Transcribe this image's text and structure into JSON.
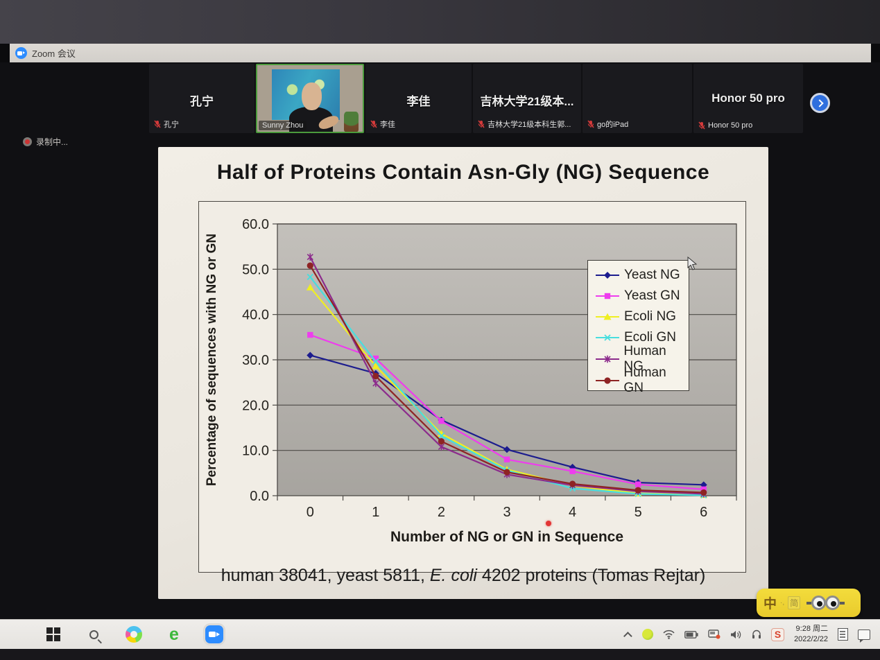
{
  "window": {
    "title": "Zoom 会议"
  },
  "recording": {
    "label": "录制中..."
  },
  "meeting": {
    "participants": [
      {
        "display_name": "孔宁",
        "label": "孔宁"
      },
      {
        "display_name": "",
        "label": "Sunny Zhou"
      },
      {
        "display_name": "李佳",
        "label": "李佳"
      },
      {
        "display_name": "吉林大学21级本...",
        "label": "吉林大学21级本科生郭..."
      },
      {
        "display_name": "",
        "label": "go的iPad"
      },
      {
        "display_name": "Honor 50 pro",
        "label": "Honor 50 pro"
      }
    ]
  },
  "slide": {
    "title": "Half of Proteins Contain Asn-Gly (NG) Sequence",
    "caption_pre": "human 38041, yeast 5811, ",
    "caption_italic": "E. coli",
    "caption_post": " 4202 proteins (Tomas Rejtar)"
  },
  "chart_data": {
    "type": "line",
    "x": [
      0,
      1,
      2,
      3,
      4,
      5,
      6
    ],
    "xlabel": "Number of NG or GN in Sequence",
    "ylabel": "Percentage of sequences with NG or GN",
    "ylim": [
      0,
      60
    ],
    "y_ticks": [
      "0.0",
      "10.0",
      "20.0",
      "30.0",
      "40.0",
      "50.0",
      "60.0"
    ],
    "grid": true,
    "legend_position": "right-inside",
    "series": [
      {
        "name": "Yeast NG",
        "color": "#1c1c8e",
        "marker": "diamond",
        "values": [
          31.0,
          27.0,
          16.7,
          10.2,
          6.3,
          2.9,
          2.4
        ]
      },
      {
        "name": "Yeast GN",
        "color": "#ee3cee",
        "marker": "square",
        "values": [
          35.5,
          30.3,
          16.5,
          8.0,
          5.4,
          2.5,
          1.4
        ]
      },
      {
        "name": "Ecoli NG",
        "color": "#efef22",
        "marker": "triangle",
        "values": [
          46.0,
          28.6,
          13.7,
          5.8,
          2.2,
          0.5,
          0.2
        ]
      },
      {
        "name": "Ecoli GN",
        "color": "#48dede",
        "marker": "x",
        "values": [
          48.3,
          29.6,
          13.2,
          5.6,
          1.6,
          0.4,
          0.1
        ]
      },
      {
        "name": "Human NG",
        "color": "#8c2b8c",
        "marker": "star",
        "values": [
          52.7,
          24.8,
          10.8,
          4.7,
          2.3,
          1.0,
          0.4
        ]
      },
      {
        "name": "Human GN",
        "color": "#8e2424",
        "marker": "circle",
        "values": [
          50.8,
          26.4,
          12.0,
          5.2,
          2.6,
          1.2,
          0.7
        ]
      }
    ]
  },
  "ime": {
    "lang": "中",
    "punct": "·,",
    "mode": "简"
  },
  "taskbar": {
    "ie_glyph": "e",
    "sogou_glyph": "S",
    "time": "9:28 周二",
    "date": "2022/2/22"
  }
}
